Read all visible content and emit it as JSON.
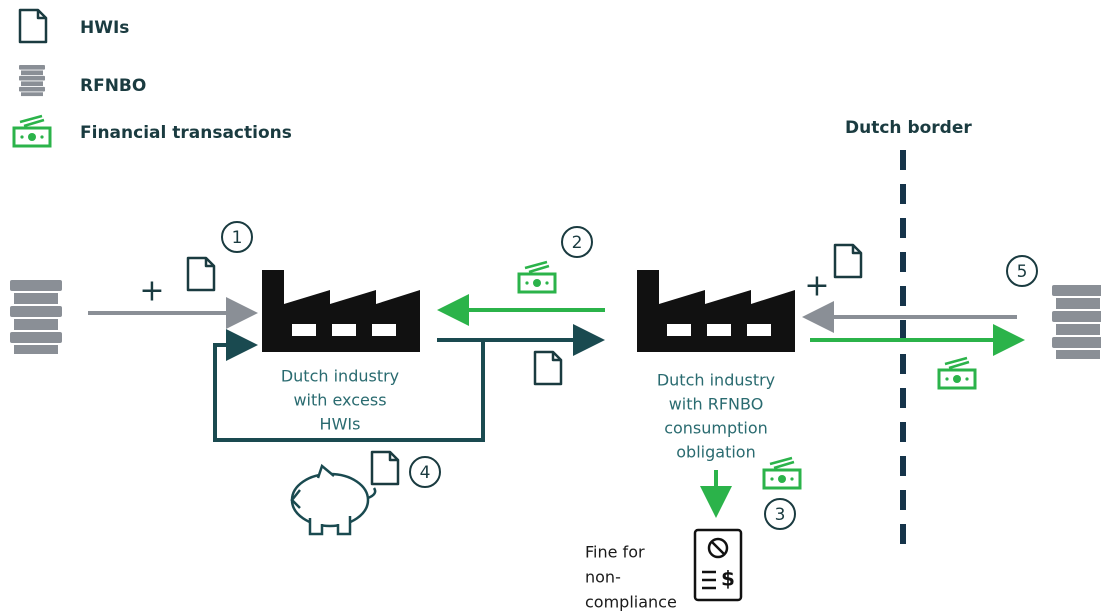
{
  "legend": [
    {
      "label": "HWIs"
    },
    {
      "label": "RFNBO"
    },
    {
      "label": "Financial transactions"
    }
  ],
  "border_label": "Dutch border",
  "plus_sign": "+",
  "nodes": [
    {
      "label": [
        "Dutch industry",
        "with excess",
        "HWIs"
      ]
    },
    {
      "label": [
        "Dutch industry",
        "with RFNBO",
        "consumption",
        "obligation"
      ]
    }
  ],
  "steps": [
    1,
    2,
    3,
    4,
    5
  ],
  "fine": [
    "Fine for",
    "non-",
    "compliance"
  ]
}
